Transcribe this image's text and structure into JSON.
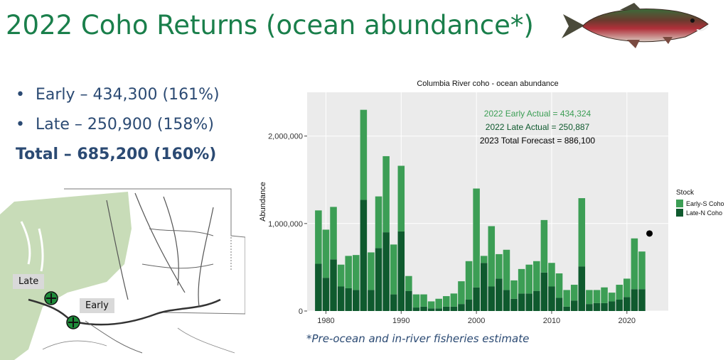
{
  "slide": {
    "title": "2022 Coho Returns (ocean abundance*)",
    "bullets": [
      {
        "label": "Early – 434,300 (161%)"
      },
      {
        "label": "Late – 250,900 (158%)"
      }
    ],
    "total": "Total – 685,200 (160%)",
    "footnote": "*Pre-ocean and in-river fisheries estimate",
    "bullet_glyph": "•"
  },
  "map": {
    "labels": {
      "late": "Late",
      "early": "Early"
    },
    "marker_icon": "circle-plus-icon",
    "colors": {
      "land": "#c8dcb8",
      "water": "#ffffff",
      "marker": "#1e8c3a"
    }
  },
  "chart_data": {
    "type": "bar",
    "title": "Columbia River coho - ocean abundance",
    "xlabel": "",
    "ylabel": "Abundance",
    "ylim": [
      0,
      2500000
    ],
    "yticks": [
      0,
      1000000,
      2000000
    ],
    "ytick_labels": [
      "0",
      "1,000,000",
      "2,000,000"
    ],
    "xticks": [
      1980,
      1990,
      2000,
      2010,
      2020
    ],
    "xlim": [
      1977.5,
      2025.5
    ],
    "stacked": true,
    "legend": {
      "title": "Stock",
      "position": "right"
    },
    "grid": true,
    "x": [
      1979,
      1980,
      1981,
      1982,
      1983,
      1984,
      1985,
      1986,
      1987,
      1988,
      1989,
      1990,
      1991,
      1992,
      1993,
      1994,
      1995,
      1996,
      1997,
      1998,
      1999,
      2000,
      2001,
      2002,
      2003,
      2004,
      2005,
      2006,
      2007,
      2008,
      2009,
      2010,
      2011,
      2012,
      2013,
      2014,
      2015,
      2016,
      2017,
      2018,
      2019,
      2020,
      2021,
      2022
    ],
    "series": [
      {
        "name": "Late-N Coho",
        "color": "#0f5a2e",
        "values": [
          540000,
          380000,
          590000,
          280000,
          260000,
          240000,
          1270000,
          240000,
          720000,
          900000,
          190000,
          910000,
          230000,
          40000,
          50000,
          30000,
          30000,
          50000,
          50000,
          80000,
          130000,
          270000,
          550000,
          280000,
          370000,
          240000,
          140000,
          200000,
          200000,
          230000,
          440000,
          280000,
          150000,
          50000,
          120000,
          510000,
          80000,
          90000,
          90000,
          110000,
          130000,
          160000,
          250000,
          250000
        ]
      },
      {
        "name": "Early-S Coho",
        "color": "#3c9e55",
        "values": [
          610000,
          550000,
          600000,
          250000,
          370000,
          400000,
          1030000,
          430000,
          590000,
          870000,
          570000,
          750000,
          170000,
          150000,
          140000,
          80000,
          110000,
          120000,
          150000,
          260000,
          440000,
          1130000,
          80000,
          690000,
          280000,
          460000,
          210000,
          280000,
          330000,
          340000,
          600000,
          270000,
          280000,
          190000,
          180000,
          780000,
          160000,
          150000,
          180000,
          100000,
          170000,
          210000,
          580000,
          430000
        ]
      }
    ],
    "forecast_point": {
      "x": 2023,
      "y": 886100
    },
    "annotations": [
      {
        "text": "2022 Early Actual = 434,324",
        "color": "#3c9e55"
      },
      {
        "text": "2022 Late Actual = 250,887",
        "color": "#0f5a2e"
      },
      {
        "text": "2023 Total Forecast = 886,100",
        "color": "#000000"
      }
    ]
  }
}
